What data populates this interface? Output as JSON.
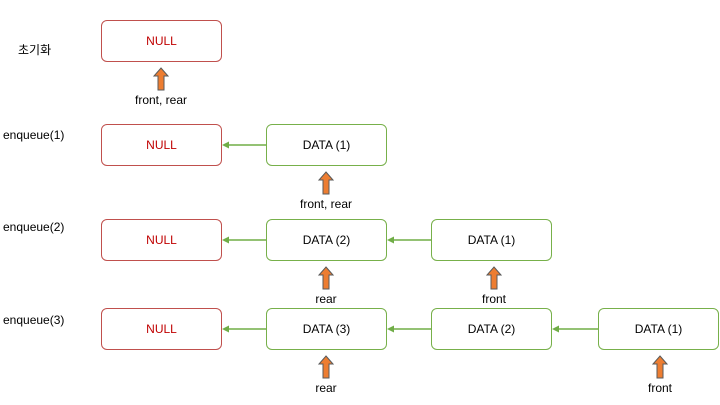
{
  "colors": {
    "null_border": "#c0504d",
    "null_text": "#c00000",
    "data_border": "#77b04a",
    "link": "#70ad47",
    "arrow_fill": "#ed7d31",
    "arrow_stroke": "#5a5a5a"
  },
  "rows": [
    {
      "label": "초기화",
      "nodes": [
        "NULL"
      ],
      "pointers": [
        {
          "text": "front, rear"
        }
      ]
    },
    {
      "label": "enqueue(1)",
      "nodes": [
        "NULL",
        "DATA (1)"
      ],
      "pointers": [
        {
          "text": "front, rear"
        }
      ]
    },
    {
      "label": "enqueue(2)",
      "nodes": [
        "NULL",
        "DATA (2)",
        "DATA (1)"
      ],
      "pointers": [
        {
          "text": "rear"
        },
        {
          "text": "front"
        }
      ]
    },
    {
      "label": "enqueue(3)",
      "nodes": [
        "NULL",
        "DATA (3)",
        "DATA (2)",
        "DATA (1)"
      ],
      "pointers": [
        {
          "text": "rear"
        },
        {
          "text": "front"
        }
      ]
    }
  ]
}
